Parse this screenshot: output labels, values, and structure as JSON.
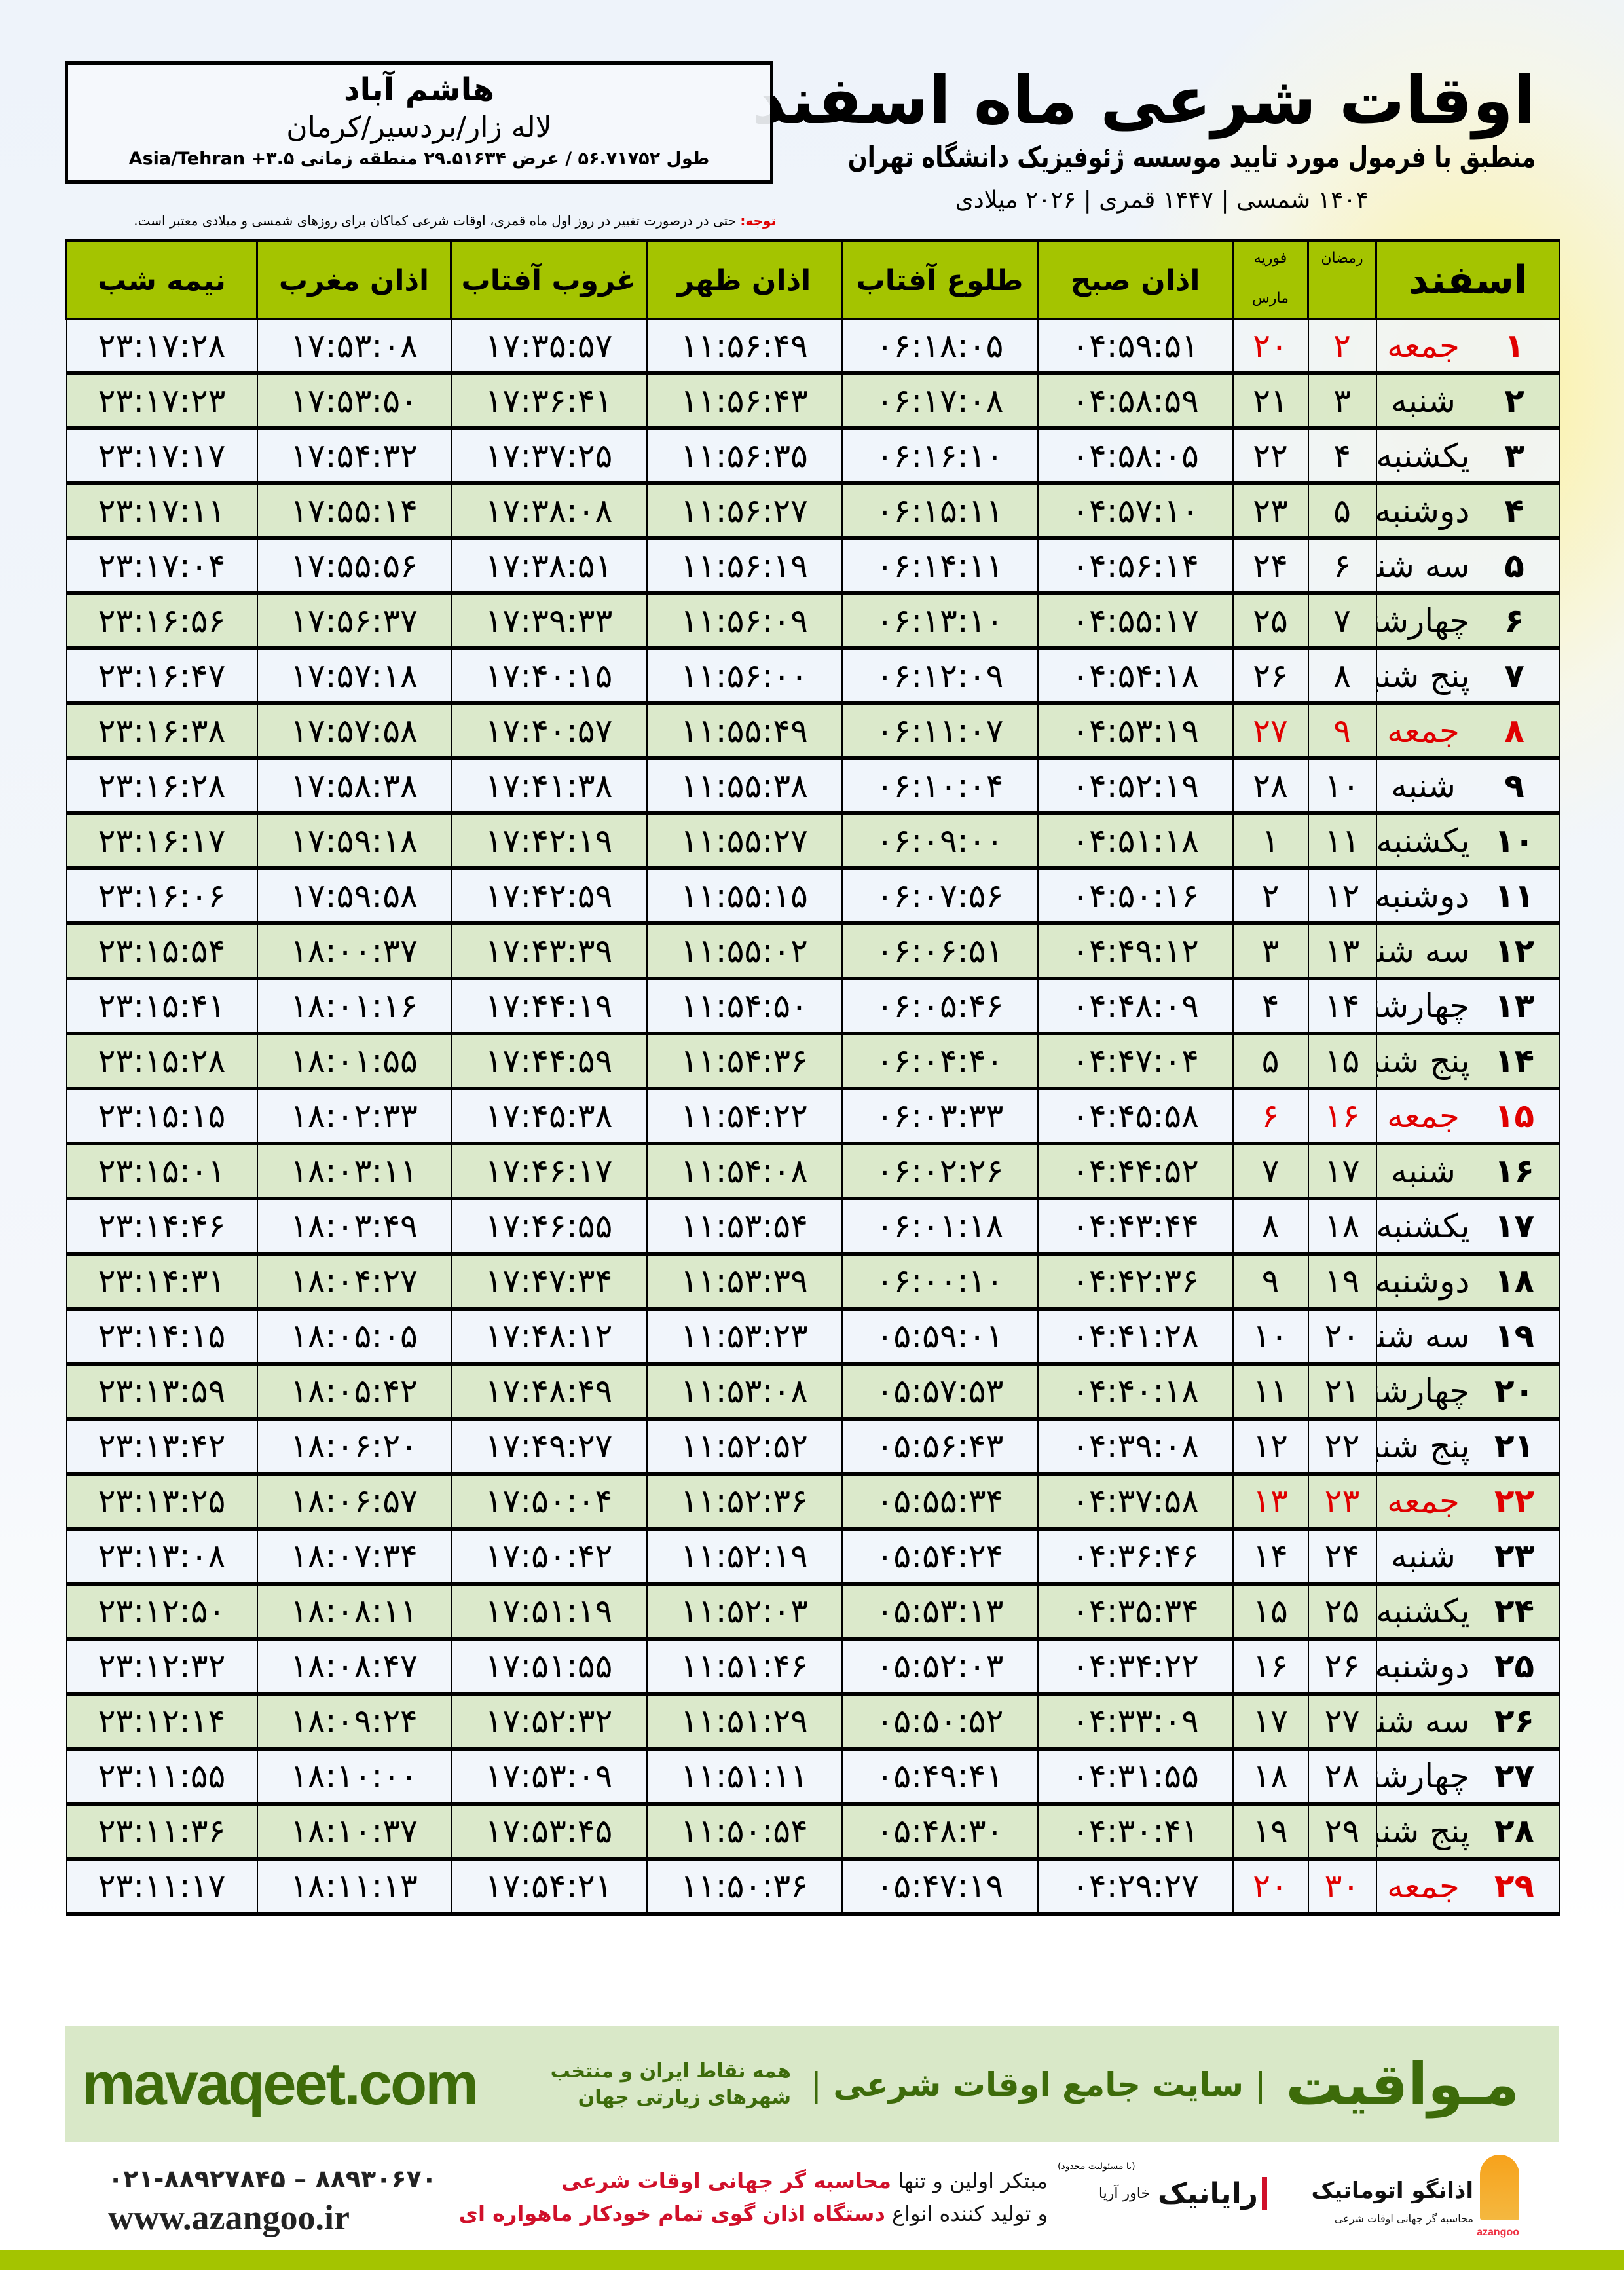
{
  "header": {
    "title": "اوقات شرعی ماه اسفند",
    "subtitle": "منطبق با فرمول مورد تایید موسسه ژئوفیزیک دانشگاه تهران",
    "dates": "۱۴۰۴ شمسی | ۱۴۴۷ قمری | ۲۰۲۶ میلادی"
  },
  "location": {
    "name": "هاشم آباد",
    "region": "لاله زار/بردسیر/کرمان",
    "coords": "طول ۵۶.۷۱۷۵۲ / عرض ۲۹.۵۱۶۳۴ منطقه زمانی ۳.۵+ Asia/Tehran"
  },
  "note": {
    "label": "توجه:",
    "text": " حتی در درصورت تغییر در روز اول ماه قمری، اوقات شرعی کماکان برای روزهای شمسی و میلادی معتبر است."
  },
  "colors": {
    "header_green": "#a4c400",
    "row_green": "#d9e8c8",
    "holiday_red": "#e00000",
    "brand_green": "#3d6b0a"
  },
  "table": {
    "columns": {
      "month": "اسفند",
      "ramadan": "رمضان",
      "feb": "فوریه",
      "mar": "مارس",
      "sobh": "اذان صبح",
      "tolu": "طلوع آفتاب",
      "zohr": "اذان ظهر",
      "ghoroob": "غروب آفتاب",
      "maghreb": "اذان مغرب",
      "nimeh": "نیمه شب"
    },
    "rows": [
      {
        "day": "۱",
        "weekday": "جمعه",
        "ramadan": "۲",
        "miladi": "۲۰",
        "sobh": "۰۴:۵۹:۵۱",
        "tolu": "۰۶:۱۸:۰۵",
        "zohr": "۱۱:۵۶:۴۹",
        "ghoroob": "۱۷:۳۵:۵۷",
        "maghreb": "۱۷:۵۳:۰۸",
        "nimeh": "۲۳:۱۷:۲۸",
        "holiday": true
      },
      {
        "day": "۲",
        "weekday": "شنبه",
        "ramadan": "۳",
        "miladi": "۲۱",
        "sobh": "۰۴:۵۸:۵۹",
        "tolu": "۰۶:۱۷:۰۸",
        "zohr": "۱۱:۵۶:۴۳",
        "ghoroob": "۱۷:۳۶:۴۱",
        "maghreb": "۱۷:۵۳:۵۰",
        "nimeh": "۲۳:۱۷:۲۳",
        "holiday": false
      },
      {
        "day": "۳",
        "weekday": "یکشنبه",
        "ramadan": "۴",
        "miladi": "۲۲",
        "sobh": "۰۴:۵۸:۰۵",
        "tolu": "۰۶:۱۶:۱۰",
        "zohr": "۱۱:۵۶:۳۵",
        "ghoroob": "۱۷:۳۷:۲۵",
        "maghreb": "۱۷:۵۴:۳۲",
        "nimeh": "۲۳:۱۷:۱۷",
        "holiday": false
      },
      {
        "day": "۴",
        "weekday": "دوشنبه",
        "ramadan": "۵",
        "miladi": "۲۳",
        "sobh": "۰۴:۵۷:۱۰",
        "tolu": "۰۶:۱۵:۱۱",
        "zohr": "۱۱:۵۶:۲۷",
        "ghoroob": "۱۷:۳۸:۰۸",
        "maghreb": "۱۷:۵۵:۱۴",
        "nimeh": "۲۳:۱۷:۱۱",
        "holiday": false
      },
      {
        "day": "۵",
        "weekday": "سه شنبه",
        "ramadan": "۶",
        "miladi": "۲۴",
        "sobh": "۰۴:۵۶:۱۴",
        "tolu": "۰۶:۱۴:۱۱",
        "zohr": "۱۱:۵۶:۱۹",
        "ghoroob": "۱۷:۳۸:۵۱",
        "maghreb": "۱۷:۵۵:۵۶",
        "nimeh": "۲۳:۱۷:۰۴",
        "holiday": false
      },
      {
        "day": "۶",
        "weekday": "چهارشنبه",
        "ramadan": "۷",
        "miladi": "۲۵",
        "sobh": "۰۴:۵۵:۱۷",
        "tolu": "۰۶:۱۳:۱۰",
        "zohr": "۱۱:۵۶:۰۹",
        "ghoroob": "۱۷:۳۹:۳۳",
        "maghreb": "۱۷:۵۶:۳۷",
        "nimeh": "۲۳:۱۶:۵۶",
        "holiday": false
      },
      {
        "day": "۷",
        "weekday": "پنج شنبه",
        "ramadan": "۸",
        "miladi": "۲۶",
        "sobh": "۰۴:۵۴:۱۸",
        "tolu": "۰۶:۱۲:۰۹",
        "zohr": "۱۱:۵۶:۰۰",
        "ghoroob": "۱۷:۴۰:۱۵",
        "maghreb": "۱۷:۵۷:۱۸",
        "nimeh": "۲۳:۱۶:۴۷",
        "holiday": false
      },
      {
        "day": "۸",
        "weekday": "جمعه",
        "ramadan": "۹",
        "miladi": "۲۷",
        "sobh": "۰۴:۵۳:۱۹",
        "tolu": "۰۶:۱۱:۰۷",
        "zohr": "۱۱:۵۵:۴۹",
        "ghoroob": "۱۷:۴۰:۵۷",
        "maghreb": "۱۷:۵۷:۵۸",
        "nimeh": "۲۳:۱۶:۳۸",
        "holiday": true
      },
      {
        "day": "۹",
        "weekday": "شنبه",
        "ramadan": "۱۰",
        "miladi": "۲۸",
        "sobh": "۰۴:۵۲:۱۹",
        "tolu": "۰۶:۱۰:۰۴",
        "zohr": "۱۱:۵۵:۳۸",
        "ghoroob": "۱۷:۴۱:۳۸",
        "maghreb": "۱۷:۵۸:۳۸",
        "nimeh": "۲۳:۱۶:۲۸",
        "holiday": false
      },
      {
        "day": "۱۰",
        "weekday": "یکشنبه",
        "ramadan": "۱۱",
        "miladi": "۱",
        "sobh": "۰۴:۵۱:۱۸",
        "tolu": "۰۶:۰۹:۰۰",
        "zohr": "۱۱:۵۵:۲۷",
        "ghoroob": "۱۷:۴۲:۱۹",
        "maghreb": "۱۷:۵۹:۱۸",
        "nimeh": "۲۳:۱۶:۱۷",
        "holiday": false
      },
      {
        "day": "۱۱",
        "weekday": "دوشنبه",
        "ramadan": "۱۲",
        "miladi": "۲",
        "sobh": "۰۴:۵۰:۱۶",
        "tolu": "۰۶:۰۷:۵۶",
        "zohr": "۱۱:۵۵:۱۵",
        "ghoroob": "۱۷:۴۲:۵۹",
        "maghreb": "۱۷:۵۹:۵۸",
        "nimeh": "۲۳:۱۶:۰۶",
        "holiday": false
      },
      {
        "day": "۱۲",
        "weekday": "سه شنبه",
        "ramadan": "۱۳",
        "miladi": "۳",
        "sobh": "۰۴:۴۹:۱۲",
        "tolu": "۰۶:۰۶:۵۱",
        "zohr": "۱۱:۵۵:۰۲",
        "ghoroob": "۱۷:۴۳:۳۹",
        "maghreb": "۱۸:۰۰:۳۷",
        "nimeh": "۲۳:۱۵:۵۴",
        "holiday": false
      },
      {
        "day": "۱۳",
        "weekday": "چهارشنبه",
        "ramadan": "۱۴",
        "miladi": "۴",
        "sobh": "۰۴:۴۸:۰۹",
        "tolu": "۰۶:۰۵:۴۶",
        "zohr": "۱۱:۵۴:۵۰",
        "ghoroob": "۱۷:۴۴:۱۹",
        "maghreb": "۱۸:۰۱:۱۶",
        "nimeh": "۲۳:۱۵:۴۱",
        "holiday": false
      },
      {
        "day": "۱۴",
        "weekday": "پنج شنبه",
        "ramadan": "۱۵",
        "miladi": "۵",
        "sobh": "۰۴:۴۷:۰۴",
        "tolu": "۰۶:۰۴:۴۰",
        "zohr": "۱۱:۵۴:۳۶",
        "ghoroob": "۱۷:۴۴:۵۹",
        "maghreb": "۱۸:۰۱:۵۵",
        "nimeh": "۲۳:۱۵:۲۸",
        "holiday": false
      },
      {
        "day": "۱۵",
        "weekday": "جمعه",
        "ramadan": "۱۶",
        "miladi": "۶",
        "sobh": "۰۴:۴۵:۵۸",
        "tolu": "۰۶:۰۳:۳۳",
        "zohr": "۱۱:۵۴:۲۲",
        "ghoroob": "۱۷:۴۵:۳۸",
        "maghreb": "۱۸:۰۲:۳۳",
        "nimeh": "۲۳:۱۵:۱۵",
        "holiday": true
      },
      {
        "day": "۱۶",
        "weekday": "شنبه",
        "ramadan": "۱۷",
        "miladi": "۷",
        "sobh": "۰۴:۴۴:۵۲",
        "tolu": "۰۶:۰۲:۲۶",
        "zohr": "۱۱:۵۴:۰۸",
        "ghoroob": "۱۷:۴۶:۱۷",
        "maghreb": "۱۸:۰۳:۱۱",
        "nimeh": "۲۳:۱۵:۰۱",
        "holiday": false
      },
      {
        "day": "۱۷",
        "weekday": "یکشنبه",
        "ramadan": "۱۸",
        "miladi": "۸",
        "sobh": "۰۴:۴۳:۴۴",
        "tolu": "۰۶:۰۱:۱۸",
        "zohr": "۱۱:۵۳:۵۴",
        "ghoroob": "۱۷:۴۶:۵۵",
        "maghreb": "۱۸:۰۳:۴۹",
        "nimeh": "۲۳:۱۴:۴۶",
        "holiday": false
      },
      {
        "day": "۱۸",
        "weekday": "دوشنبه",
        "ramadan": "۱۹",
        "miladi": "۹",
        "sobh": "۰۴:۴۲:۳۶",
        "tolu": "۰۶:۰۰:۱۰",
        "zohr": "۱۱:۵۳:۳۹",
        "ghoroob": "۱۷:۴۷:۳۴",
        "maghreb": "۱۸:۰۴:۲۷",
        "nimeh": "۲۳:۱۴:۳۱",
        "holiday": false
      },
      {
        "day": "۱۹",
        "weekday": "سه شنبه",
        "ramadan": "۲۰",
        "miladi": "۱۰",
        "sobh": "۰۴:۴۱:۲۸",
        "tolu": "۰۵:۵۹:۰۱",
        "zohr": "۱۱:۵۳:۲۳",
        "ghoroob": "۱۷:۴۸:۱۲",
        "maghreb": "۱۸:۰۵:۰۵",
        "nimeh": "۲۳:۱۴:۱۵",
        "holiday": false
      },
      {
        "day": "۲۰",
        "weekday": "چهارشنبه",
        "ramadan": "۲۱",
        "miladi": "۱۱",
        "sobh": "۰۴:۴۰:۱۸",
        "tolu": "۰۵:۵۷:۵۳",
        "zohr": "۱۱:۵۳:۰۸",
        "ghoroob": "۱۷:۴۸:۴۹",
        "maghreb": "۱۸:۰۵:۴۲",
        "nimeh": "۲۳:۱۳:۵۹",
        "holiday": false
      },
      {
        "day": "۲۱",
        "weekday": "پنج شنبه",
        "ramadan": "۲۲",
        "miladi": "۱۲",
        "sobh": "۰۴:۳۹:۰۸",
        "tolu": "۰۵:۵۶:۴۳",
        "zohr": "۱۱:۵۲:۵۲",
        "ghoroob": "۱۷:۴۹:۲۷",
        "maghreb": "۱۸:۰۶:۲۰",
        "nimeh": "۲۳:۱۳:۴۲",
        "holiday": false
      },
      {
        "day": "۲۲",
        "weekday": "جمعه",
        "ramadan": "۲۳",
        "miladi": "۱۳",
        "sobh": "۰۴:۳۷:۵۸",
        "tolu": "۰۵:۵۵:۳۴",
        "zohr": "۱۱:۵۲:۳۶",
        "ghoroob": "۱۷:۵۰:۰۴",
        "maghreb": "۱۸:۰۶:۵۷",
        "nimeh": "۲۳:۱۳:۲۵",
        "holiday": true
      },
      {
        "day": "۲۳",
        "weekday": "شنبه",
        "ramadan": "۲۴",
        "miladi": "۱۴",
        "sobh": "۰۴:۳۶:۴۶",
        "tolu": "۰۵:۵۴:۲۴",
        "zohr": "۱۱:۵۲:۱۹",
        "ghoroob": "۱۷:۵۰:۴۲",
        "maghreb": "۱۸:۰۷:۳۴",
        "nimeh": "۲۳:۱۳:۰۸",
        "holiday": false
      },
      {
        "day": "۲۴",
        "weekday": "یکشنبه",
        "ramadan": "۲۵",
        "miladi": "۱۵",
        "sobh": "۰۴:۳۵:۳۴",
        "tolu": "۰۵:۵۳:۱۳",
        "zohr": "۱۱:۵۲:۰۳",
        "ghoroob": "۱۷:۵۱:۱۹",
        "maghreb": "۱۸:۰۸:۱۱",
        "nimeh": "۲۳:۱۲:۵۰",
        "holiday": false
      },
      {
        "day": "۲۵",
        "weekday": "دوشنبه",
        "ramadan": "۲۶",
        "miladi": "۱۶",
        "sobh": "۰۴:۳۴:۲۲",
        "tolu": "۰۵:۵۲:۰۳",
        "zohr": "۱۱:۵۱:۴۶",
        "ghoroob": "۱۷:۵۱:۵۵",
        "maghreb": "۱۸:۰۸:۴۷",
        "nimeh": "۲۳:۱۲:۳۲",
        "holiday": false
      },
      {
        "day": "۲۶",
        "weekday": "سه شنبه",
        "ramadan": "۲۷",
        "miladi": "۱۷",
        "sobh": "۰۴:۳۳:۰۹",
        "tolu": "۰۵:۵۰:۵۲",
        "zohr": "۱۱:۵۱:۲۹",
        "ghoroob": "۱۷:۵۲:۳۲",
        "maghreb": "۱۸:۰۹:۲۴",
        "nimeh": "۲۳:۱۲:۱۴",
        "holiday": false
      },
      {
        "day": "۲۷",
        "weekday": "چهارشنبه",
        "ramadan": "۲۸",
        "miladi": "۱۸",
        "sobh": "۰۴:۳۱:۵۵",
        "tolu": "۰۵:۴۹:۴۱",
        "zohr": "۱۱:۵۱:۱۱",
        "ghoroob": "۱۷:۵۳:۰۹",
        "maghreb": "۱۸:۱۰:۰۰",
        "nimeh": "۲۳:۱۱:۵۵",
        "holiday": false
      },
      {
        "day": "۲۸",
        "weekday": "پنج شنبه",
        "ramadan": "۲۹",
        "miladi": "۱۹",
        "sobh": "۰۴:۳۰:۴۱",
        "tolu": "۰۵:۴۸:۳۰",
        "zohr": "۱۱:۵۰:۵۴",
        "ghoroob": "۱۷:۵۳:۴۵",
        "maghreb": "۱۸:۱۰:۳۷",
        "nimeh": "۲۳:۱۱:۳۶",
        "holiday": false
      },
      {
        "day": "۲۹",
        "weekday": "جمعه",
        "ramadan": "۳۰",
        "miladi": "۲۰",
        "sobh": "۰۴:۲۹:۲۷",
        "tolu": "۰۵:۴۷:۱۹",
        "zohr": "۱۱:۵۰:۳۶",
        "ghoroob": "۱۷:۵۴:۲۱",
        "maghreb": "۱۸:۱۱:۱۳",
        "nimeh": "۲۳:۱۱:۱۷",
        "holiday": true
      }
    ]
  },
  "banner": {
    "brand": "مـواقیت",
    "separator": "|",
    "slogan": "سایت جامع اوقات شرعی",
    "slogan2": "همه نقاط ایران و منتخب شهرهای زیارتی جهان",
    "site": "mavaqeet.com"
  },
  "footer": {
    "phone": "۰۲۱-۸۸۹۲۷۸۴۵ – ۸۸۹۳۰۶۷۰",
    "web": "www.azangoo.ir",
    "promo1_a": "مبتکر اولین و تنها ",
    "promo1_b": "محاسبه گر جهانی اوقات شرعی",
    "promo2_a": "و تولید کننده انواع ",
    "promo2_b": "دستگاه اذان گوی تمام خودکار ماهواره ای",
    "rayanik_name": "رایانیک",
    "rayanik_sub": "خاور آریا",
    "rayanik_ltd": "(با مسئولیت محدود)",
    "azangoo_name": "اذانگو اتوماتیک",
    "azangoo_sub": "محاسبه گر جهانی اوقات شرعی",
    "azangoo_en": "azangoo"
  }
}
